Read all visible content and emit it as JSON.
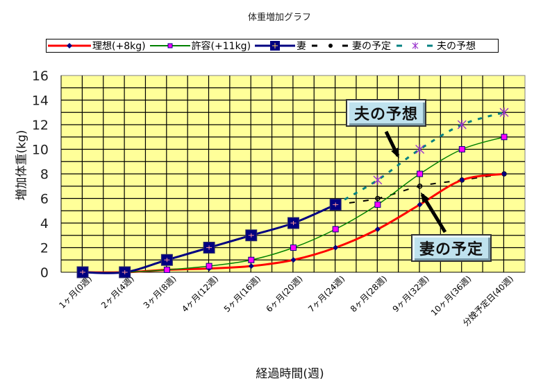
{
  "chart_data": {
    "type": "line",
    "title": "体重増加グラフ",
    "xlabel": "経過時間(週)",
    "ylabel": "増加体重(kg)",
    "ylim": [
      0,
      16
    ],
    "yticks": [
      0,
      2,
      4,
      6,
      8,
      10,
      12,
      14,
      16
    ],
    "grid": true,
    "legend_position": "top",
    "plot_background": "#ffff99",
    "categories": [
      "1ヶ月(0週)",
      "2ヶ月(4週)",
      "3ヶ月(8週)",
      "4ヶ月(12週)",
      "5ヶ月(16週)",
      "6ヶ月(20週)",
      "7ヶ月(24週)",
      "8ヶ月(28週)",
      "9ヶ月(32週)",
      "10ヶ月(36週)",
      "分娩予定日(40週)"
    ],
    "series": [
      {
        "name": "理想(+8kg)",
        "color": "#ff0000",
        "marker": "diamond",
        "marker_color": "#000080",
        "style": "solid",
        "width": 3,
        "values": [
          0,
          0,
          0.2,
          0.3,
          0.5,
          1,
          2,
          3.5,
          5.5,
          7.5,
          8
        ]
      },
      {
        "name": "許容(+11kg)",
        "color": "#008000",
        "marker": "square",
        "marker_color": "#ff00ff",
        "style": "solid",
        "width": 1.5,
        "values": [
          0,
          0,
          0.2,
          0.5,
          1,
          2,
          3.5,
          5.5,
          8,
          10,
          11
        ]
      },
      {
        "name": "妻",
        "color": "#000080",
        "marker": "big-square",
        "marker_color": "#000080",
        "style": "solid",
        "width": 3,
        "values": [
          0,
          0,
          1,
          2,
          3,
          4,
          5.5,
          null,
          null,
          null,
          null
        ]
      },
      {
        "name": "妻の予定",
        "color": "#000000",
        "marker": "circle",
        "marker_color": "#000000",
        "style": "dashed",
        "width": 2,
        "values": [
          null,
          null,
          null,
          null,
          null,
          null,
          5.5,
          6,
          7,
          7.5,
          8
        ]
      },
      {
        "name": "夫の予想",
        "color": "#008080",
        "marker": "star",
        "marker_color": "#9933cc",
        "style": "dashed",
        "width": 3,
        "values": [
          null,
          null,
          null,
          null,
          null,
          null,
          5.5,
          7.5,
          10,
          12,
          13
        ]
      }
    ],
    "annotations": [
      {
        "text": "夫の予想",
        "points_to_series": "夫の予想"
      },
      {
        "text": "妻の予定",
        "points_to_series": "妻の予定"
      }
    ]
  },
  "legend": {
    "items": [
      "理想(+8kg)",
      "許容(+11kg)",
      "妻",
      "妻の予定",
      "夫の予想"
    ]
  }
}
